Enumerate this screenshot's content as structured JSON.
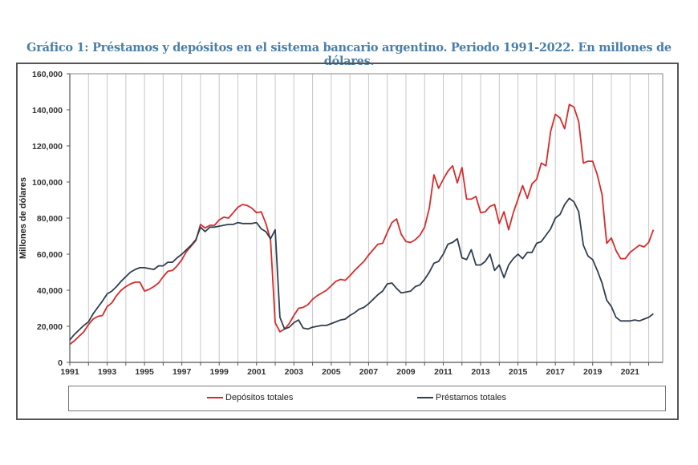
{
  "title": "Gráfico 1: Préstamos y depósitos en el sistema bancario argentino. Periodo 1991-2022. En millones de dólares.",
  "legend": [
    {
      "label": "Depósitos totales",
      "color": "#d62b2b"
    },
    {
      "label": "Préstamos totales",
      "color": "#2f3e4e"
    }
  ],
  "chart_data": {
    "type": "line",
    "title": "Gráfico 1: Préstamos y depósitos en el sistema bancario argentino. Periodo 1991-2022. En millones de dólares.",
    "xlabel": "",
    "ylabel": "Millones de dólares",
    "ylim": [
      0,
      160000
    ],
    "xlim": [
      1991,
      2022.75
    ],
    "grid": "vertical",
    "legend_position": "bottom",
    "yticks": [
      0,
      20000,
      40000,
      60000,
      80000,
      100000,
      120000,
      140000,
      160000
    ],
    "ytick_labels": [
      "0",
      "20,000",
      "40,000",
      "60,000",
      "80,000",
      "100,000",
      "120,000",
      "140,000",
      "160,000"
    ],
    "xtick_labels": [
      "1991",
      "1993",
      "1995",
      "1997",
      "1999",
      "2001",
      "2003",
      "2005",
      "2007",
      "2009",
      "2011",
      "2013",
      "2015",
      "2017",
      "2019",
      "2021"
    ],
    "x": [
      1991.0,
      1991.25,
      1991.5,
      1991.75,
      1992.0,
      1992.25,
      1992.5,
      1992.75,
      1993.0,
      1993.25,
      1993.5,
      1993.75,
      1994.0,
      1994.25,
      1994.5,
      1994.75,
      1995.0,
      1995.25,
      1995.5,
      1995.75,
      1996.0,
      1996.25,
      1996.5,
      1996.75,
      1997.0,
      1997.25,
      1997.5,
      1997.75,
      1998.0,
      1998.25,
      1998.5,
      1998.75,
      1999.0,
      1999.25,
      1999.5,
      1999.75,
      2000.0,
      2000.25,
      2000.5,
      2000.75,
      2001.0,
      2001.25,
      2001.5,
      2001.75,
      2002.0,
      2002.25,
      2002.5,
      2002.75,
      2003.0,
      2003.25,
      2003.5,
      2003.75,
      2004.0,
      2004.25,
      2004.5,
      2004.75,
      2005.0,
      2005.25,
      2005.5,
      2005.75,
      2006.0,
      2006.25,
      2006.5,
      2006.75,
      2007.0,
      2007.25,
      2007.5,
      2007.75,
      2008.0,
      2008.25,
      2008.5,
      2008.75,
      2009.0,
      2009.25,
      2009.5,
      2009.75,
      2010.0,
      2010.25,
      2010.5,
      2010.75,
      2011.0,
      2011.25,
      2011.5,
      2011.75,
      2012.0,
      2012.25,
      2012.5,
      2012.75,
      2013.0,
      2013.25,
      2013.5,
      2013.75,
      2014.0,
      2014.25,
      2014.5,
      2014.75,
      2015.0,
      2015.25,
      2015.5,
      2015.75,
      2016.0,
      2016.25,
      2016.5,
      2016.75,
      2017.0,
      2017.25,
      2017.5,
      2017.75,
      2018.0,
      2018.25,
      2018.5,
      2018.75,
      2019.0,
      2019.25,
      2019.5,
      2019.75,
      2020.0,
      2020.25,
      2020.5,
      2020.75,
      2021.0,
      2021.25,
      2021.5,
      2021.75,
      2022.0,
      2022.25
    ],
    "series": [
      {
        "name": "Depósitos totales",
        "color": "#d62b2b",
        "values": [
          10000,
          12000,
          14500,
          17000,
          21000,
          24000,
          25500,
          26000,
          31000,
          33000,
          37000,
          40000,
          42000,
          43500,
          44500,
          44500,
          39500,
          40500,
          42000,
          44000,
          47500,
          50500,
          51000,
          53500,
          57000,
          61500,
          64500,
          67500,
          76500,
          74500,
          76000,
          76000,
          79000,
          80500,
          80000,
          83000,
          86000,
          87500,
          87000,
          85500,
          83000,
          83500,
          77000,
          68000,
          22000,
          17000,
          18500,
          21500,
          26000,
          30000,
          30500,
          32000,
          35000,
          37000,
          38500,
          40000,
          42500,
          45000,
          46000,
          45500,
          48000,
          51000,
          53500,
          56000,
          59500,
          62500,
          65500,
          66000,
          72000,
          77500,
          79500,
          71000,
          67000,
          66500,
          68000,
          70500,
          75000,
          85500,
          104000,
          96500,
          101500,
          106000,
          109000,
          99500,
          108000,
          90500,
          90500,
          92000,
          83000,
          83500,
          86500,
          87500,
          77000,
          83500,
          73500,
          83000,
          90500,
          98000,
          91000,
          99000,
          101500,
          110500,
          109000,
          128000,
          137500,
          135500,
          129500,
          143000,
          141500,
          133500,
          110500,
          111500,
          111500,
          104000,
          93000,
          66000,
          69000,
          62000,
          57500,
          57500,
          61000,
          63000,
          65000,
          64000,
          66500,
          73500
        ]
      },
      {
        "name": "Préstamos totales",
        "color": "#2f3e4e",
        "values": [
          12500,
          15500,
          18000,
          20500,
          22500,
          27000,
          30500,
          34000,
          38000,
          39500,
          42000,
          45000,
          47500,
          50000,
          51500,
          52500,
          52500,
          52000,
          51500,
          53500,
          53500,
          55500,
          55500,
          58000,
          60000,
          62500,
          65000,
          68000,
          75000,
          72500,
          75000,
          75000,
          75500,
          76000,
          76500,
          76500,
          77500,
          77000,
          77000,
          77000,
          77500,
          74000,
          72500,
          68500,
          73500,
          25000,
          18500,
          19500,
          22000,
          23500,
          19000,
          18500,
          19500,
          20000,
          20500,
          20500,
          21500,
          22500,
          23500,
          24000,
          26000,
          27500,
          29500,
          30500,
          32500,
          35000,
          37500,
          39500,
          43500,
          44000,
          41000,
          38500,
          39000,
          39500,
          42000,
          43000,
          46000,
          50000,
          55000,
          56000,
          60000,
          65500,
          66500,
          68500,
          58000,
          57000,
          62500,
          54000,
          54000,
          56000,
          60000,
          51000,
          54000,
          47000,
          54000,
          57500,
          60000,
          57500,
          61000,
          61000,
          66000,
          67000,
          70500,
          74000,
          80000,
          82000,
          87500,
          91000,
          89000,
          83500,
          65000,
          59000,
          57000,
          51000,
          44000,
          34500,
          31000,
          25000,
          23000,
          23000,
          23000,
          23500,
          23000,
          24000,
          25000,
          27000
        ]
      }
    ]
  }
}
